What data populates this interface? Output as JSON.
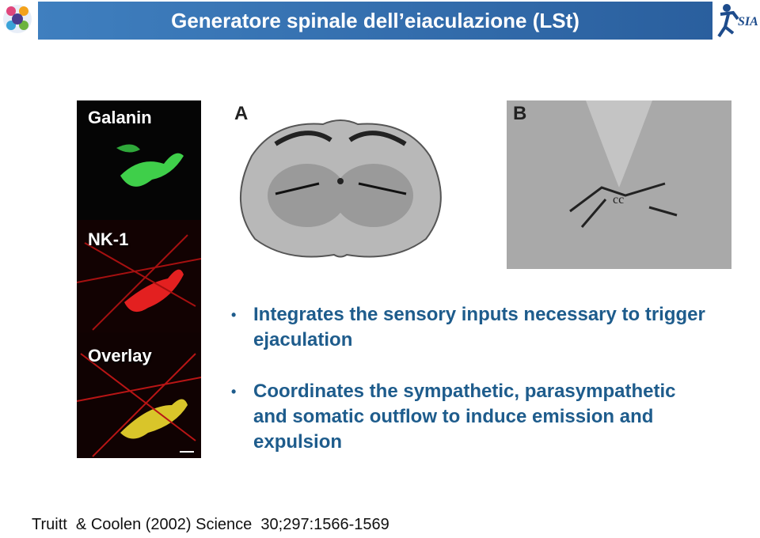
{
  "header": {
    "title": "Generatore spinale dell’eiaculazione (LSt)",
    "logo_right": "SIA"
  },
  "figure": {
    "fluorescence_labels": [
      "Galanin",
      "NK-1",
      "Overlay"
    ],
    "panel_a_label": "A",
    "panel_b_label": "B",
    "panel_b_annotation": "cc"
  },
  "bullets": [
    "Integrates the sensory inputs necessary to trigger ejaculation",
    "Coordinates the sympathetic, parasympathetic and somatic outflow to induce emission and expulsion"
  ],
  "citation": "Truitt  & Coolen (2002) Science  30;297:1566-1569"
}
